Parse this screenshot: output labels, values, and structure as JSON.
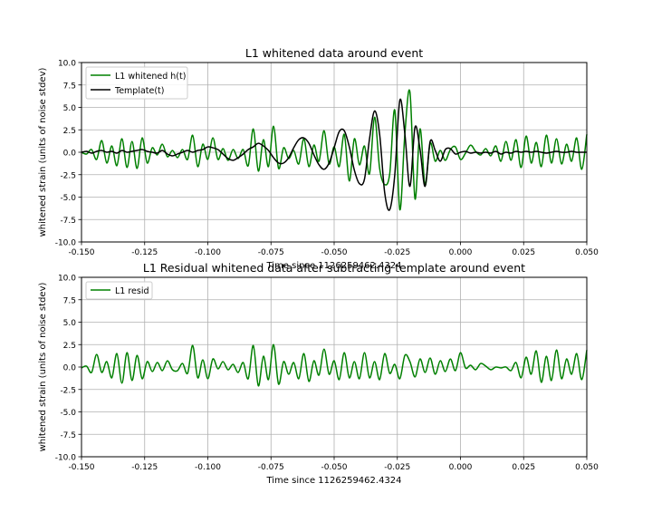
{
  "chart_data": [
    {
      "type": "line",
      "title": "L1 whitened data around event",
      "xlabel": "Time since 1126259462.4324",
      "ylabel": "whitened strain (units of noise stdev)",
      "xlim": [
        -0.15,
        0.05
      ],
      "ylim": [
        -10.0,
        10.0
      ],
      "xticks": [
        "-0.150",
        "-0.125",
        "-0.100",
        "-0.075",
        "-0.050",
        "-0.025",
        "0.000",
        "0.025",
        "0.050"
      ],
      "yticks": [
        "10.0",
        "7.5",
        "5.0",
        "2.5",
        "0.0",
        "-2.5",
        "-5.0",
        "-7.5",
        "-10.0"
      ],
      "grid": true,
      "legend": "upper left",
      "series": [
        {
          "name": "L1 whitened h(t)",
          "color": "#008000",
          "x": [
            -0.15,
            -0.148,
            -0.146,
            -0.144,
            -0.142,
            -0.14,
            -0.138,
            -0.136,
            -0.134,
            -0.132,
            -0.13,
            -0.128,
            -0.126,
            -0.124,
            -0.122,
            -0.12,
            -0.118,
            -0.116,
            -0.114,
            -0.112,
            -0.11,
            -0.108,
            -0.106,
            -0.104,
            -0.102,
            -0.1,
            -0.098,
            -0.096,
            -0.094,
            -0.092,
            -0.09,
            -0.088,
            -0.086,
            -0.084,
            -0.082,
            -0.08,
            -0.078,
            -0.076,
            -0.074,
            -0.072,
            -0.07,
            -0.068,
            -0.066,
            -0.064,
            -0.062,
            -0.06,
            -0.058,
            -0.056,
            -0.054,
            -0.052,
            -0.05,
            -0.048,
            -0.046,
            -0.044,
            -0.042,
            -0.04,
            -0.038,
            -0.036,
            -0.034,
            -0.032,
            -0.03,
            -0.028,
            -0.026,
            -0.024,
            -0.022,
            -0.02,
            -0.018,
            -0.016,
            -0.014,
            -0.012,
            -0.01,
            -0.008,
            -0.006,
            -0.004,
            -0.002,
            0.0,
            0.002,
            0.004,
            0.006,
            0.008,
            0.01,
            0.012,
            0.014,
            0.016,
            0.018,
            0.02,
            0.022,
            0.024,
            0.026,
            0.028,
            0.03,
            0.032,
            0.034,
            0.036,
            0.038,
            0.04,
            0.042,
            0.044,
            0.046,
            0.048,
            0.05
          ],
          "y": [
            0.0,
            -0.2,
            0.3,
            -0.8,
            1.3,
            -1.2,
            0.7,
            -1.5,
            1.5,
            -1.7,
            1.2,
            -1.8,
            1.6,
            -1.2,
            0.5,
            -0.3,
            0.9,
            -0.5,
            0.2,
            -0.6,
            0.3,
            -0.8,
            1.9,
            -1.6,
            0.9,
            -0.8,
            1.6,
            -0.8,
            0.4,
            -0.9,
            0.3,
            -0.7,
            0.3,
            -1.5,
            2.6,
            -2.1,
            1.4,
            -1.6,
            2.9,
            -1.8,
            0.5,
            -0.7,
            0.2,
            -1.3,
            1.5,
            -1.6,
            0.8,
            -1.0,
            2.4,
            -1.3,
            0.6,
            -1.6,
            2.0,
            -3.2,
            1.5,
            -1.4,
            0.7,
            -2.4,
            3.9,
            -1.8,
            -3.6,
            -2.4,
            4.7,
            -6.4,
            2.1,
            6.7,
            -5.2,
            2.6,
            -3.7,
            1.0,
            -1.0,
            0.2,
            -0.9,
            0.3,
            0.6,
            -0.8,
            -0.1,
            0.8,
            0.1,
            -0.3,
            0.4,
            -0.4,
            0.7,
            -1.0,
            1.2,
            -0.9,
            1.4,
            -1.7,
            1.8,
            -1.2,
            1.1,
            -1.6,
            1.9,
            -1.2,
            1.5,
            -1.3,
            0.9,
            -1.0,
            1.6,
            -1.9,
            2.0
          ]
        },
        {
          "name": "Template(t)",
          "color": "#000000",
          "x": [
            -0.15,
            -0.148,
            -0.146,
            -0.144,
            -0.142,
            -0.14,
            -0.138,
            -0.136,
            -0.134,
            -0.132,
            -0.13,
            -0.128,
            -0.126,
            -0.124,
            -0.122,
            -0.12,
            -0.118,
            -0.116,
            -0.114,
            -0.112,
            -0.11,
            -0.108,
            -0.106,
            -0.104,
            -0.102,
            -0.1,
            -0.098,
            -0.096,
            -0.094,
            -0.092,
            -0.09,
            -0.088,
            -0.086,
            -0.084,
            -0.082,
            -0.08,
            -0.078,
            -0.076,
            -0.074,
            -0.072,
            -0.07,
            -0.068,
            -0.066,
            -0.064,
            -0.062,
            -0.06,
            -0.058,
            -0.056,
            -0.054,
            -0.052,
            -0.05,
            -0.048,
            -0.046,
            -0.044,
            -0.042,
            -0.04,
            -0.038,
            -0.036,
            -0.034,
            -0.032,
            -0.03,
            -0.028,
            -0.026,
            -0.024,
            -0.022,
            -0.02,
            -0.018,
            -0.016,
            -0.014,
            -0.012,
            -0.01,
            -0.008,
            -0.006,
            -0.004,
            -0.002,
            0.0,
            0.002,
            0.004,
            0.006,
            0.008,
            0.01,
            0.012,
            0.014,
            0.016,
            0.018,
            0.02,
            0.022,
            0.024,
            0.026,
            0.028,
            0.03,
            0.032,
            0.034,
            0.036,
            0.038,
            0.04,
            0.042,
            0.044,
            0.046,
            0.048,
            0.05
          ],
          "y": [
            0.0,
            0.1,
            -0.1,
            0.1,
            0.2,
            0.0,
            0.1,
            -0.1,
            0.2,
            0.0,
            0.1,
            0.2,
            0.3,
            0.1,
            0.0,
            -0.1,
            0.2,
            -0.2,
            -0.4,
            -0.2,
            0.0,
            0.2,
            0.0,
            0.2,
            0.3,
            0.6,
            0.5,
            0.3,
            -0.2,
            -0.7,
            -0.9,
            -0.6,
            -0.2,
            0.3,
            0.6,
            1.0,
            0.7,
            0.2,
            -0.6,
            -1.2,
            -1.2,
            -0.6,
            0.5,
            1.4,
            1.6,
            1.0,
            -0.3,
            -1.4,
            -1.9,
            -1.2,
            0.5,
            2.3,
            2.4,
            0.6,
            -2.0,
            -3.5,
            -3.0,
            1.5,
            4.6,
            2.0,
            -4.5,
            -6.4,
            -2.5,
            5.8,
            2.0,
            -3.8,
            2.8,
            0.3,
            -3.8,
            1.2,
            0.2,
            -1.0,
            0.3,
            0.4,
            -0.2,
            0.0,
            0.1,
            -0.1,
            0.0,
            -0.1,
            0.0,
            -0.1,
            0.1,
            -0.2,
            0.0,
            -0.1,
            0.1,
            0.0,
            0.1,
            0.0,
            0.1,
            0.0,
            -0.1,
            0.0,
            0.1,
            0.0,
            0.0,
            0.1,
            0.0,
            0.0,
            0.0
          ]
        }
      ]
    },
    {
      "type": "line",
      "title": "L1 Residual whitened data after subtracting template around event",
      "xlabel": "Time since 1126259462.4324",
      "ylabel": "whitened strain (units of noise stdev)",
      "xlim": [
        -0.15,
        0.05
      ],
      "ylim": [
        -10.0,
        10.0
      ],
      "xticks": [
        "-0.150",
        "-0.125",
        "-0.100",
        "-0.075",
        "-0.050",
        "-0.025",
        "0.000",
        "0.025",
        "0.050"
      ],
      "yticks": [
        "10.0",
        "7.5",
        "5.0",
        "2.5",
        "0.0",
        "-2.5",
        "-5.0",
        "-7.5",
        "-10.0"
      ],
      "grid": true,
      "legend": "upper left",
      "series": [
        {
          "name": "L1 resid",
          "color": "#008000",
          "x": [
            -0.15,
            -0.148,
            -0.146,
            -0.144,
            -0.142,
            -0.14,
            -0.138,
            -0.136,
            -0.134,
            -0.132,
            -0.13,
            -0.128,
            -0.126,
            -0.124,
            -0.122,
            -0.12,
            -0.118,
            -0.116,
            -0.114,
            -0.112,
            -0.11,
            -0.108,
            -0.106,
            -0.104,
            -0.102,
            -0.1,
            -0.098,
            -0.096,
            -0.094,
            -0.092,
            -0.09,
            -0.088,
            -0.086,
            -0.084,
            -0.082,
            -0.08,
            -0.078,
            -0.076,
            -0.074,
            -0.072,
            -0.07,
            -0.068,
            -0.066,
            -0.064,
            -0.062,
            -0.06,
            -0.058,
            -0.056,
            -0.054,
            -0.052,
            -0.05,
            -0.048,
            -0.046,
            -0.044,
            -0.042,
            -0.04,
            -0.038,
            -0.036,
            -0.034,
            -0.032,
            -0.03,
            -0.028,
            -0.026,
            -0.024,
            -0.022,
            -0.02,
            -0.018,
            -0.016,
            -0.014,
            -0.012,
            -0.01,
            -0.008,
            -0.006,
            -0.004,
            -0.002,
            0.0,
            0.002,
            0.004,
            0.006,
            0.008,
            0.01,
            0.012,
            0.014,
            0.016,
            0.018,
            0.02,
            0.022,
            0.024,
            0.026,
            0.028,
            0.03,
            0.032,
            0.034,
            0.036,
            0.038,
            0.04,
            0.042,
            0.044,
            0.046,
            0.048,
            0.05
          ],
          "y": [
            -0.1,
            0.1,
            -0.6,
            1.4,
            -0.6,
            0.6,
            -1.2,
            1.5,
            -1.8,
            1.6,
            -1.5,
            1.3,
            -1.3,
            0.6,
            -0.5,
            0.5,
            -0.4,
            0.7,
            -0.3,
            -0.4,
            0.4,
            -0.7,
            2.4,
            -1.2,
            0.8,
            -1.3,
            0.9,
            -0.2,
            0.6,
            -0.3,
            0.3,
            -0.6,
            0.5,
            -1.3,
            2.4,
            -2.1,
            1.2,
            -1.4,
            2.5,
            -1.9,
            0.6,
            -0.8,
            0.5,
            -1.3,
            1.5,
            -1.6,
            0.7,
            -0.9,
            2.0,
            -0.8,
            0.7,
            -1.4,
            1.6,
            -1.2,
            0.6,
            -1.3,
            1.6,
            -1.2,
            0.6,
            -1.4,
            1.5,
            -0.7,
            0.3,
            -1.3,
            1.3,
            0.6,
            -1.1,
            0.9,
            -0.6,
            1.0,
            -0.8,
            0.7,
            -0.5,
            0.9,
            -0.4,
            1.6,
            -0.1,
            0.2,
            -0.3,
            0.4,
            0.1,
            -0.3,
            0.0,
            -0.1,
            0.0,
            -0.4,
            0.5,
            -1.2,
            1.1,
            -0.8,
            1.8,
            -1.7,
            1.2,
            -1.5,
            1.9,
            -1.3,
            0.9,
            -0.8,
            1.5,
            -1.4,
            1.9
          ]
        }
      ]
    }
  ]
}
